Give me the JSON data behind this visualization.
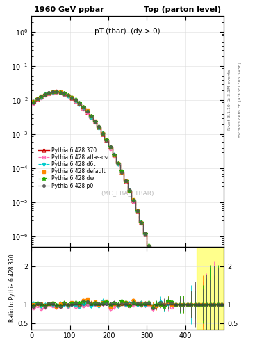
{
  "title_left": "1960 GeV ppbar",
  "title_right": "Top (parton level)",
  "plot_title": "pT (tbar)  (dy > 0)",
  "watermark": "(MC_FBA_TTBAR)",
  "right_label_top": "Rivet 3.1.10; ≥ 3.1M events",
  "right_label_bottom": "mcplots.cern.ch [arXiv:1306.3436]",
  "ylabel_ratio": "Ratio to Pythia 6.428 370",
  "xlim": [
    0,
    500
  ],
  "ylim_main": [
    5e-07,
    3.0
  ],
  "ylim_ratio": [
    0.35,
    2.5
  ],
  "yticks_ratio": [
    0.5,
    1.0,
    2.0
  ],
  "xticks": [
    0,
    100,
    200,
    300,
    400
  ],
  "series": [
    {
      "label": "Pythia 6.428 370",
      "color": "#cc0000",
      "linestyle": "-",
      "marker": "^",
      "marker_filled": false,
      "linewidth": 1.0,
      "markersize": 3.5
    },
    {
      "label": "Pythia 6.428 atlas-csc",
      "color": "#ff69b4",
      "linestyle": "--",
      "marker": "o",
      "marker_filled": false,
      "linewidth": 0.8,
      "markersize": 3
    },
    {
      "label": "Pythia 6.428 d6t",
      "color": "#00cccc",
      "linestyle": "--",
      "marker": "D",
      "marker_filled": true,
      "linewidth": 0.8,
      "markersize": 2.5
    },
    {
      "label": "Pythia 6.428 default",
      "color": "#ff8800",
      "linestyle": "--",
      "marker": "s",
      "marker_filled": true,
      "linewidth": 0.8,
      "markersize": 2.5
    },
    {
      "label": "Pythia 6.428 dw",
      "color": "#22aa00",
      "linestyle": "--",
      "marker": "*",
      "marker_filled": true,
      "linewidth": 0.8,
      "markersize": 4
    },
    {
      "label": "Pythia 6.428 p0",
      "color": "#555555",
      "linestyle": "-",
      "marker": "o",
      "marker_filled": false,
      "linewidth": 0.8,
      "markersize": 2.5
    }
  ],
  "background_color": "#ffffff",
  "grid_color": "#dddddd",
  "yellow_shade_start": 430
}
